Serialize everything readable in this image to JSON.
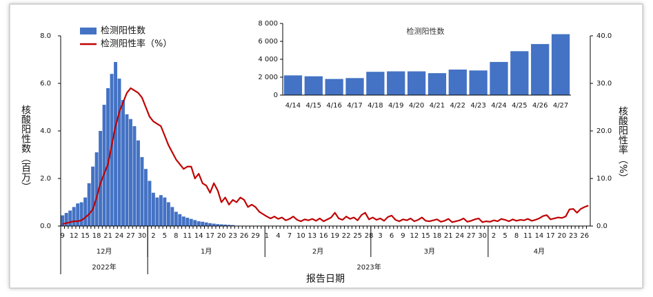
{
  "chart_data": [
    {
      "type": "combo",
      "xlabel": "报告日期",
      "ylabel": "核酸阳性数（百万）",
      "y2label": "核酸阳性率（%）",
      "legend": "upper left",
      "categories": [
        "9",
        null,
        null,
        "12",
        null,
        null,
        "15",
        null,
        null,
        "18",
        null,
        null,
        "21",
        null,
        null,
        "24",
        null,
        null,
        "27",
        null,
        null,
        "30",
        null,
        null,
        "2",
        null,
        null,
        "5",
        null,
        null,
        "8",
        null,
        null,
        "11",
        null,
        null,
        "14",
        null,
        null,
        "17",
        null,
        null,
        "20",
        null,
        null,
        "23",
        null,
        null,
        "26",
        null,
        null,
        "29",
        null,
        null,
        "1",
        null,
        null,
        "4",
        null,
        null,
        "7",
        null,
        null,
        "10",
        null,
        null,
        "13",
        null,
        null,
        "16",
        null,
        null,
        "19",
        null,
        null,
        "22",
        null,
        null,
        "25",
        null,
        null,
        "28",
        null,
        null,
        "3",
        null,
        null,
        "6",
        null,
        null,
        "9",
        null,
        null,
        "12",
        null,
        null,
        "15",
        null,
        null,
        "18",
        null,
        null,
        "21",
        null,
        null,
        "24",
        null,
        null,
        "27",
        null,
        null,
        "30",
        null,
        null,
        "2",
        null,
        null,
        "5",
        null,
        null,
        "8",
        null,
        null,
        "11",
        null,
        null,
        "14",
        null,
        null,
        "17",
        null,
        null,
        "20",
        null,
        null,
        "23",
        null,
        null,
        "26",
        null
      ],
      "months": [
        {
          "label": "12月",
          "span": [
            0,
            22
          ]
        },
        {
          "label": "1月",
          "span": [
            23,
            53
          ]
        },
        {
          "label": "2月",
          "span": [
            54,
            81
          ]
        },
        {
          "label": "3月",
          "span": [
            82,
            112
          ]
        },
        {
          "label": "4月",
          "span": [
            113,
            139
          ]
        }
      ],
      "years": [
        {
          "label": "2022年",
          "span": [
            0,
            22
          ]
        },
        {
          "label": "2023年",
          "span": [
            23,
            139
          ]
        }
      ],
      "ylim": [
        0,
        8
      ],
      "yticks": [
        {
          "value": 0,
          "label": "0.0"
        },
        {
          "value": 2,
          "label": "2.0"
        },
        {
          "value": 4,
          "label": "4.0"
        },
        {
          "value": 6,
          "label": "6.0"
        },
        {
          "value": 8,
          "label": "8.0"
        }
      ],
      "y2lim": [
        0,
        40
      ],
      "y2ticks": [
        {
          "value": 0,
          "label": "0.0"
        },
        {
          "value": 10,
          "label": "10.0"
        },
        {
          "value": 20,
          "label": "20.0"
        },
        {
          "value": 30,
          "label": "30.0"
        },
        {
          "value": 40,
          "label": "40.0"
        }
      ],
      "series": [
        {
          "name": "检测阳性数",
          "type": "bar",
          "color": "#4472c4",
          "values": [
            0.45,
            0.55,
            0.65,
            0.8,
            0.95,
            1.0,
            1.2,
            1.8,
            2.5,
            3.1,
            4.0,
            5.1,
            5.8,
            6.4,
            6.9,
            6.2,
            5.3,
            4.7,
            4.5,
            4.2,
            3.6,
            2.9,
            2.4,
            1.9,
            1.4,
            1.2,
            1.3,
            1.2,
            1.0,
            0.8,
            0.6,
            0.5,
            0.4,
            0.35,
            0.3,
            0.25,
            0.2,
            0.18,
            0.15,
            0.12,
            0.1,
            0.08,
            0.07,
            0.06,
            0.05,
            0.04,
            null,
            null,
            null,
            null,
            null,
            null,
            null,
            null,
            null,
            null,
            null,
            null,
            null,
            null,
            null,
            null,
            null,
            null,
            null,
            null,
            null,
            null,
            null,
            null,
            null,
            null,
            null,
            null,
            null,
            null,
            null,
            null,
            null,
            null,
            null,
            null,
            null,
            null,
            null,
            null,
            null,
            null,
            null,
            null,
            null,
            null,
            null,
            null,
            null,
            null,
            null,
            null,
            null,
            null,
            null,
            null,
            null,
            null,
            null,
            null,
            null,
            null,
            null,
            null,
            null,
            null,
            null,
            null,
            null,
            null,
            null,
            null,
            null,
            null,
            null,
            null,
            null,
            null,
            null,
            null,
            null,
            null,
            null,
            null,
            null,
            null,
            null,
            null,
            null,
            null,
            null,
            null,
            null,
            null
          ]
        },
        {
          "name": "检测阳性率（%）",
          "type": "line",
          "axis": "y2",
          "color": "#c00000",
          "values": [
            0.4,
            0.6,
            0.8,
            1.0,
            1.0,
            1.2,
            1.8,
            2.5,
            3.5,
            6.0,
            9.0,
            11.0,
            13.0,
            17.0,
            21.0,
            24.0,
            26.0,
            28.0,
            29.0,
            28.5,
            28.0,
            27.0,
            25.0,
            23.0,
            22.0,
            21.5,
            21.0,
            19.0,
            17.0,
            15.5,
            14.0,
            13.0,
            12.0,
            12.5,
            12.5,
            10.0,
            11.0,
            9.0,
            8.5,
            7.0,
            9.0,
            7.5,
            5.0,
            6.0,
            4.5,
            5.5,
            5.0,
            6.0,
            5.5,
            4.0,
            4.5,
            4.0,
            3.0,
            2.5,
            2.0,
            1.6,
            2.0,
            1.5,
            1.8,
            1.2,
            1.5,
            2.0,
            1.3,
            1.0,
            1.4,
            1.2,
            1.5,
            1.1,
            1.6,
            1.0,
            1.4,
            1.8,
            2.8,
            1.6,
            1.3,
            2.0,
            1.5,
            1.8,
            1.2,
            2.3,
            2.8,
            1.4,
            1.8,
            1.3,
            1.6,
            1.1,
            1.9,
            2.2,
            1.3,
            1.0,
            1.4,
            1.2,
            1.6,
            1.0,
            1.3,
            1.8,
            1.1,
            1.0,
            1.2,
            1.4,
            0.9,
            1.1,
            1.5,
            0.8,
            1.0,
            1.2,
            1.6,
            0.9,
            1.1,
            1.4,
            1.6,
            0.8,
            1.0,
            0.9,
            1.2,
            1.0,
            1.5,
            1.3,
            1.0,
            1.4,
            1.1,
            1.3,
            1.2,
            1.5,
            1.1,
            1.3,
            1.6,
            2.1,
            2.3,
            1.4,
            1.6,
            1.8,
            1.7,
            2.0,
            3.5,
            3.6,
            2.8,
            3.6,
            4.0,
            4.3
          ]
        }
      ]
    },
    {
      "type": "bar",
      "title": "检测阳性数",
      "color": "#4472c4",
      "categories": [
        "4/14",
        "4/15",
        "4/16",
        "4/17",
        "4/18",
        "4/19",
        "4/20",
        "4/21",
        "4/22",
        "4/23",
        "4/24",
        "4/25",
        "4/26",
        "4/27"
      ],
      "values": [
        2200,
        2100,
        1800,
        1900,
        2600,
        2650,
        2650,
        2450,
        2850,
        2750,
        3700,
        4900,
        5700,
        6800
      ],
      "ylim": [
        0,
        8000
      ],
      "yticks": [
        0,
        {
          "value": 2000,
          "label": "2 000"
        },
        {
          "value": 4000,
          "label": "4 000"
        },
        {
          "value": 6000,
          "label": "6 000"
        },
        {
          "value": 8000,
          "label": "8 000"
        }
      ]
    }
  ]
}
